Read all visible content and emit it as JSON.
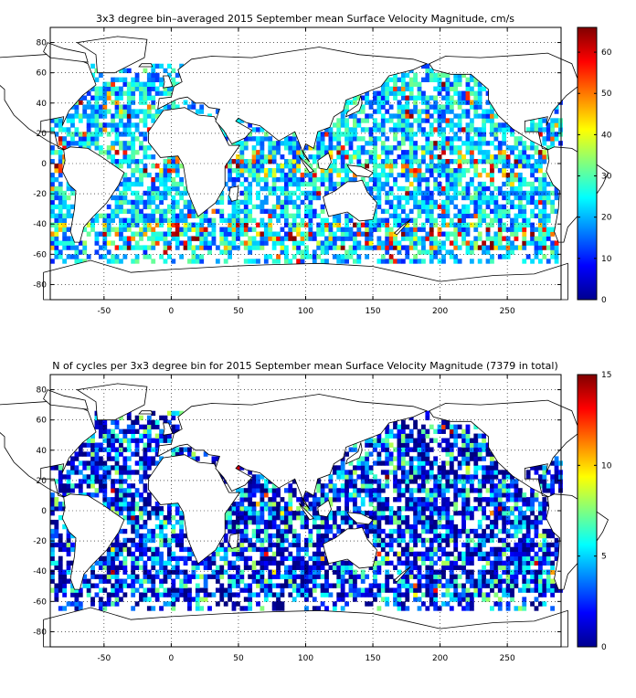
{
  "chart_data": [
    {
      "type": "heatmap",
      "title": "3x3 degree bin–averaged 2015 September mean Surface Velocity Magnitude, cm/s",
      "xlabel": "",
      "ylabel": "",
      "xlim": [
        -90,
        290
      ],
      "ylim": [
        -90,
        90
      ],
      "x_ticks": [
        -50,
        0,
        50,
        100,
        150,
        200,
        250
      ],
      "y_ticks": [
        80,
        60,
        40,
        20,
        0,
        -20,
        -40,
        -60,
        -80
      ],
      "bin_size_deg": 3,
      "grid": true,
      "grid_style": "dotted",
      "colorbar": {
        "placement": "right",
        "range": [
          0,
          66
        ],
        "ticks": [
          0,
          10,
          20,
          30,
          40,
          50,
          60
        ],
        "colormap": "jet"
      },
      "coastline": true
    },
    {
      "type": "heatmap",
      "title": "N of cycles per 3x3 degree bin for 2015 September mean Surface Velocity Magnitude (7379 in total)",
      "xlabel": "",
      "ylabel": "",
      "xlim": [
        -90,
        290
      ],
      "ylim": [
        -90,
        90
      ],
      "x_ticks": [
        -50,
        0,
        50,
        100,
        150,
        200,
        250
      ],
      "y_ticks": [
        80,
        60,
        40,
        20,
        0,
        -20,
        -40,
        -60,
        -80
      ],
      "bin_size_deg": 3,
      "grid": true,
      "grid_style": "dotted",
      "colorbar": {
        "placement": "right",
        "range": [
          0,
          15
        ],
        "ticks": [
          0,
          5,
          10,
          15
        ],
        "colormap": "jet"
      },
      "coastline": true
    }
  ]
}
